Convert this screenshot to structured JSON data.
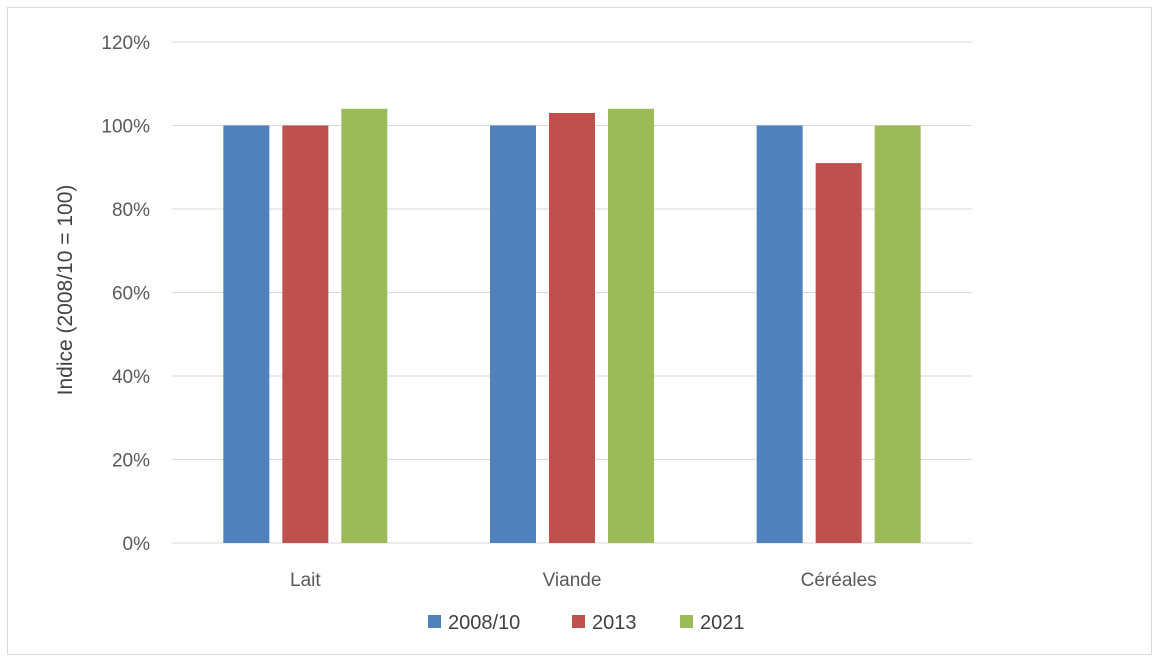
{
  "chart_data": {
    "type": "bar",
    "categories": [
      "Lait",
      "Viande",
      "Céréales"
    ],
    "series": [
      {
        "name": "2008/10",
        "color": "#4f81bd",
        "values": [
          100,
          100,
          100
        ]
      },
      {
        "name": "2013",
        "color": "#c0504d",
        "values": [
          100,
          103,
          91
        ]
      },
      {
        "name": "2021",
        "color": "#9bbb59",
        "values": [
          104,
          104,
          100
        ]
      }
    ],
    "ylabel": "Indice (2008/10 = 100)",
    "ylim": [
      0,
      120
    ],
    "yticks": [
      0,
      20,
      40,
      60,
      80,
      100,
      120
    ],
    "ytick_labels": [
      "0%",
      "20%",
      "40%",
      "60%",
      "80%",
      "100%",
      "120%"
    ],
    "grid": true,
    "legend_position": "bottom"
  }
}
